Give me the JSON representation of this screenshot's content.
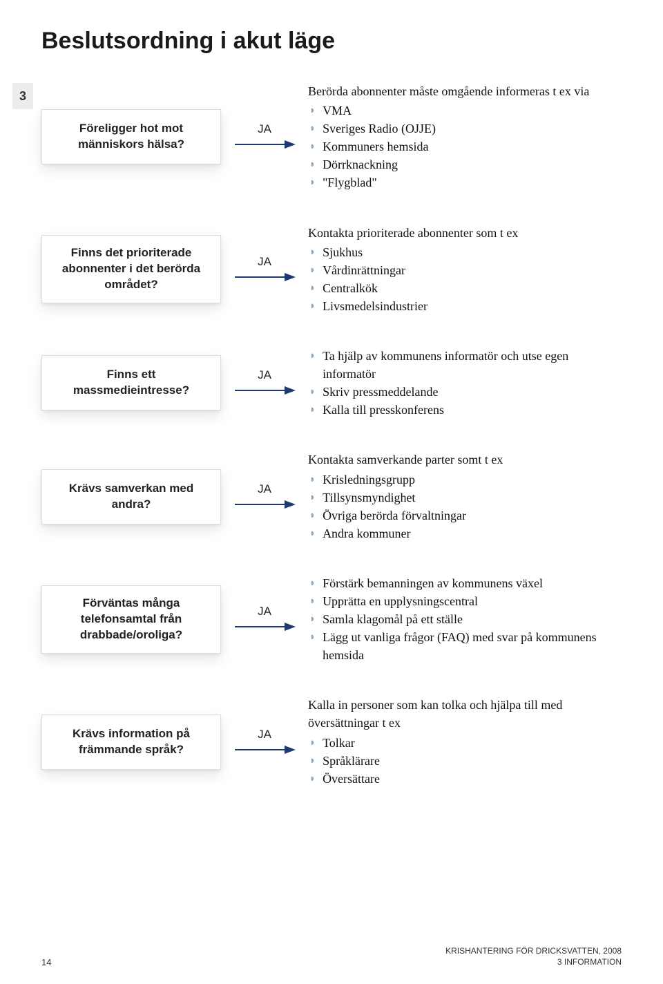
{
  "title": "Beslutsordning i akut läge",
  "section_number": "3",
  "arrow_label": "JA",
  "arrow_color": "#1f3a6e",
  "bullet_color": "#7aa7c7",
  "rows": [
    {
      "question": "Föreligger hot mot människors hälsa?",
      "intro": "Berörda abonnenter måste omgående informeras t ex via",
      "items": [
        "VMA",
        "Sveriges Radio (OJJE)",
        "Kommuners hemsida",
        "Dörrknackning",
        "\"Flygblad\""
      ]
    },
    {
      "question": "Finns det prioriterade abonnenter i det berörda området?",
      "intro": "Kontakta prioriterade abonnenter som t ex",
      "items": [
        "Sjukhus",
        "Vårdinrättningar",
        "Centralkök",
        "Livsmedelsindustrier"
      ]
    },
    {
      "question": "Finns ett massmedieintresse?",
      "intro": "",
      "items": [
        "Ta hjälp av kommunens informatör och utse egen informatör",
        "Skriv pressmeddelande",
        "Kalla till presskonferens"
      ]
    },
    {
      "question": "Krävs samverkan med andra?",
      "intro": "Kontakta samverkande parter somt t ex",
      "items": [
        "Krisledningsgrupp",
        "Tillsynsmyndighet",
        "Övriga berörda förvaltningar",
        "Andra kommuner"
      ]
    },
    {
      "question": "Förväntas många telefonsamtal från drabbade/oroliga?",
      "intro": "",
      "items": [
        "Förstärk bemanningen av kommunens växel",
        "Upprätta en upplysningscentral",
        "Samla klagomål på ett ställe",
        "Lägg ut vanliga frågor (FAQ) med svar på kommunens hemsida"
      ]
    },
    {
      "question": "Krävs information på främmande språk?",
      "intro": "Kalla in  personer som kan tolka och hjälpa till med översättningar t ex",
      "items": [
        "Tolkar",
        "Språklärare",
        "Översättare"
      ]
    }
  ],
  "footer": {
    "page_number": "14",
    "right_line1": "KRISHANTERING FÖR DRICKSVATTEN, 2008",
    "right_line2": "3  INFORMATION"
  }
}
